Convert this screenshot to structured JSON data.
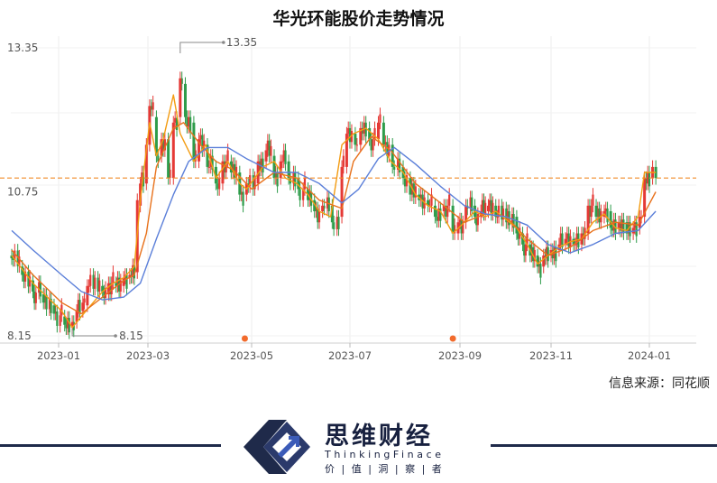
{
  "title": "华光环能股价走势情况",
  "source": "信息来源：同花顺",
  "brand": {
    "name_cn": "思维财经",
    "name_en": "ThinkingFinace",
    "tagline": "价 | 值 | 洞 | 察 | 者",
    "colors": {
      "navy": "#1f2a4a",
      "blue": "#3b5bb8"
    }
  },
  "chart_data": {
    "type": "line",
    "subtype": "candlestick-with-moving-averages",
    "x_tick_labels": [
      "2023-01",
      "2023-03",
      "2023-05",
      "2023-07",
      "2023-09",
      "2023-11",
      "2024-01"
    ],
    "y_tick_labels": [
      "13.35",
      "10.75",
      "8.15"
    ],
    "ylim": [
      8.15,
      13.35
    ],
    "annotations": {
      "high": "13.35",
      "low": "8.15"
    },
    "reference_line": {
      "value": 11.0,
      "color": "#f28c28",
      "style": "dashed"
    },
    "event_markers": [
      "2023-04-27",
      "2023-08-28"
    ],
    "grid": true,
    "colors": {
      "up": "#e53935",
      "down": "#2e9c4a",
      "ma_short": "#f39c12",
      "ma_mid": "#e8721c",
      "ma_long": "#5b7fd9"
    },
    "series": [
      {
        "values": [
          [
            "2022-12-01",
            9.6
          ],
          [
            "2022-12-15",
            9.1
          ],
          [
            "2023-01-03",
            8.6
          ],
          [
            "2023-01-10",
            8.3
          ],
          [
            "2023-01-16",
            8.5
          ],
          [
            "2023-01-30",
            8.95
          ],
          [
            "2023-02-06",
            9.1
          ],
          [
            "2023-02-13",
            9.2
          ],
          [
            "2023-02-20",
            9.4
          ],
          [
            "2023-02-24",
            10.6
          ],
          [
            "2023-03-02",
            12.0
          ],
          [
            "2023-03-06",
            11.4
          ],
          [
            "2023-03-10",
            11.7
          ],
          [
            "2023-03-16",
            12.5
          ],
          [
            "2023-03-20",
            11.8
          ],
          [
            "2023-03-28",
            11.3
          ],
          [
            "2023-04-04",
            11.6
          ],
          [
            "2023-04-10",
            11.0
          ],
          [
            "2023-04-17",
            11.3
          ],
          [
            "2023-04-24",
            10.9
          ],
          [
            "2023-04-28",
            10.8
          ],
          [
            "2023-05-08",
            11.2
          ],
          [
            "2023-05-15",
            11.3
          ],
          [
            "2023-05-22",
            11.0
          ],
          [
            "2023-05-29",
            10.9
          ],
          [
            "2023-06-05",
            10.7
          ],
          [
            "2023-06-12",
            10.4
          ],
          [
            "2023-06-19",
            10.3
          ],
          [
            "2023-06-26",
            11.6
          ],
          [
            "2023-07-03",
            11.8
          ],
          [
            "2023-07-10",
            11.9
          ],
          [
            "2023-07-17",
            11.7
          ],
          [
            "2023-07-24",
            11.3
          ],
          [
            "2023-07-31",
            11.1
          ],
          [
            "2023-08-07",
            10.7
          ],
          [
            "2023-08-14",
            10.5
          ],
          [
            "2023-08-21",
            10.4
          ],
          [
            "2023-08-28",
            10.0
          ],
          [
            "2023-09-04",
            10.2
          ],
          [
            "2023-09-11",
            10.4
          ],
          [
            "2023-09-18",
            10.3
          ],
          [
            "2023-09-25",
            10.4
          ],
          [
            "2023-10-09",
            10.1
          ],
          [
            "2023-10-16",
            9.8
          ],
          [
            "2023-10-23",
            9.45
          ],
          [
            "2023-10-30",
            9.6
          ],
          [
            "2023-11-06",
            9.75
          ],
          [
            "2023-11-13",
            9.85
          ],
          [
            "2023-11-20",
            9.9
          ],
          [
            "2023-11-27",
            10.2
          ],
          [
            "2023-12-04",
            10.35
          ],
          [
            "2023-12-11",
            10.1
          ],
          [
            "2023-12-18",
            10.05
          ],
          [
            "2023-12-25",
            10.3
          ],
          [
            "2023-12-29",
            11.1
          ],
          [
            "2024-01-05",
            11.1
          ]
        ]
      },
      {
        "values": [
          [
            "2022-12-01",
            9.7
          ],
          [
            "2022-12-15",
            9.25
          ],
          [
            "2023-01-03",
            8.75
          ],
          [
            "2023-01-16",
            8.55
          ],
          [
            "2023-01-30",
            8.85
          ],
          [
            "2023-02-13",
            9.15
          ],
          [
            "2023-02-20",
            9.25
          ],
          [
            "2023-02-28",
            10.0
          ],
          [
            "2023-03-06",
            11.2
          ],
          [
            "2023-03-16",
            11.9
          ],
          [
            "2023-03-22",
            12.0
          ],
          [
            "2023-04-01",
            11.6
          ],
          [
            "2023-04-10",
            11.3
          ],
          [
            "2023-04-20",
            11.15
          ],
          [
            "2023-05-01",
            10.8
          ],
          [
            "2023-05-15",
            11.1
          ],
          [
            "2023-05-29",
            11.0
          ],
          [
            "2023-06-12",
            10.6
          ],
          [
            "2023-06-26",
            10.45
          ],
          [
            "2023-07-03",
            11.3
          ],
          [
            "2023-07-13",
            11.75
          ],
          [
            "2023-07-24",
            11.5
          ],
          [
            "2023-08-07",
            10.9
          ],
          [
            "2023-08-21",
            10.55
          ],
          [
            "2023-09-04",
            10.2
          ],
          [
            "2023-09-18",
            10.35
          ],
          [
            "2023-10-02",
            10.3
          ],
          [
            "2023-10-16",
            9.9
          ],
          [
            "2023-10-30",
            9.6
          ],
          [
            "2023-11-13",
            9.75
          ],
          [
            "2023-11-27",
            10.05
          ],
          [
            "2023-12-11",
            10.2
          ],
          [
            "2023-12-25",
            10.15
          ],
          [
            "2024-01-05",
            10.75
          ]
        ]
      },
      {
        "values": [
          [
            "2022-12-01",
            10.05
          ],
          [
            "2022-12-15",
            9.7
          ],
          [
            "2023-01-03",
            9.25
          ],
          [
            "2023-01-16",
            8.95
          ],
          [
            "2023-01-30",
            8.8
          ],
          [
            "2023-02-13",
            8.85
          ],
          [
            "2023-02-24",
            9.1
          ],
          [
            "2023-03-06",
            9.9
          ],
          [
            "2023-03-16",
            10.7
          ],
          [
            "2023-03-25",
            11.3
          ],
          [
            "2023-04-05",
            11.55
          ],
          [
            "2023-04-17",
            11.55
          ],
          [
            "2023-04-28",
            11.35
          ],
          [
            "2023-05-15",
            11.1
          ],
          [
            "2023-05-29",
            11.1
          ],
          [
            "2023-06-12",
            10.9
          ],
          [
            "2023-06-26",
            10.55
          ],
          [
            "2023-07-06",
            10.8
          ],
          [
            "2023-07-17",
            11.35
          ],
          [
            "2023-07-26",
            11.55
          ],
          [
            "2023-08-07",
            11.25
          ],
          [
            "2023-08-21",
            10.85
          ],
          [
            "2023-09-04",
            10.5
          ],
          [
            "2023-09-18",
            10.35
          ],
          [
            "2023-10-02",
            10.3
          ],
          [
            "2023-10-16",
            10.15
          ],
          [
            "2023-10-30",
            9.8
          ],
          [
            "2023-11-13",
            9.65
          ],
          [
            "2023-11-27",
            9.8
          ],
          [
            "2023-12-11",
            10.0
          ],
          [
            "2023-12-25",
            10.05
          ],
          [
            "2024-01-05",
            10.4
          ]
        ]
      }
    ],
    "candles": [
      [
        "2022-12-01",
        9.6,
        9.55
      ],
      [
        "2022-12-08",
        9.4,
        9.25
      ],
      [
        "2022-12-15",
        9.15,
        8.95
      ],
      [
        "2022-12-22",
        8.9,
        8.75
      ],
      [
        "2022-12-29",
        8.7,
        8.55
      ],
      [
        "2023-01-05",
        8.5,
        8.35
      ],
      [
        "2023-01-10",
        8.3,
        8.4
      ],
      [
        "2023-01-13",
        8.4,
        8.6
      ],
      [
        "2023-01-17",
        8.6,
        8.75
      ],
      [
        "2023-01-20",
        8.7,
        9.05
      ],
      [
        "2023-01-30",
        9.05,
        8.95
      ],
      [
        "2023-02-03",
        8.9,
        9.1
      ],
      [
        "2023-02-08",
        9.1,
        9.05
      ],
      [
        "2023-02-13",
        9.05,
        9.2
      ],
      [
        "2023-02-17",
        9.2,
        9.25
      ],
      [
        "2023-02-22",
        9.3,
        10.6
      ],
      [
        "2023-02-24",
        10.5,
        10.9
      ],
      [
        "2023-02-28",
        10.9,
        11.6
      ],
      [
        "2023-03-02",
        11.6,
        12.3
      ],
      [
        "2023-03-06",
        12.1,
        11.4
      ],
      [
        "2023-03-09",
        11.4,
        11.7
      ],
      [
        "2023-03-13",
        11.7,
        11.0
      ],
      [
        "2023-03-16",
        11.0,
        12.0
      ],
      [
        "2023-03-20",
        12.1,
        12.8
      ],
      [
        "2023-03-23",
        12.7,
        12.1
      ],
      [
        "2023-03-28",
        12.0,
        11.3
      ],
      [
        "2023-03-31",
        11.3,
        11.7
      ],
      [
        "2023-04-05",
        11.6,
        11.2
      ],
      [
        "2023-04-10",
        11.2,
        10.9
      ],
      [
        "2023-04-14",
        10.9,
        11.3
      ],
      [
        "2023-04-19",
        11.3,
        11.1
      ],
      [
        "2023-04-24",
        11.1,
        10.7
      ],
      [
        "2023-04-28",
        10.7,
        10.9
      ],
      [
        "2023-05-05",
        10.9,
        11.3
      ],
      [
        "2023-05-10",
        11.3,
        11.5
      ],
      [
        "2023-05-15",
        11.4,
        11.0
      ],
      [
        "2023-05-19",
        11.0,
        11.3
      ],
      [
        "2023-05-24",
        11.3,
        11.0
      ],
      [
        "2023-05-30",
        11.0,
        10.8
      ],
      [
        "2023-06-05",
        10.8,
        10.6
      ],
      [
        "2023-06-09",
        10.6,
        10.4
      ],
      [
        "2023-06-14",
        10.4,
        10.5
      ],
      [
        "2023-06-20",
        10.5,
        10.2
      ],
      [
        "2023-06-26",
        10.3,
        11.2
      ],
      [
        "2023-06-29",
        11.2,
        11.8
      ],
      [
        "2023-07-04",
        11.8,
        11.6
      ],
      [
        "2023-07-07",
        11.6,
        11.9
      ],
      [
        "2023-07-12",
        11.9,
        11.7
      ],
      [
        "2023-07-17",
        11.7,
        12.0
      ],
      [
        "2023-07-20",
        12.0,
        11.6
      ],
      [
        "2023-07-25",
        11.6,
        11.2
      ],
      [
        "2023-07-31",
        11.2,
        11.0
      ],
      [
        "2023-08-04",
        11.0,
        10.7
      ],
      [
        "2023-08-09",
        10.7,
        10.6
      ],
      [
        "2023-08-14",
        10.6,
        10.5
      ],
      [
        "2023-08-18",
        10.5,
        10.3
      ],
      [
        "2023-08-23",
        10.4,
        10.5
      ],
      [
        "2023-08-28",
        10.5,
        10.0
      ],
      [
        "2023-08-31",
        10.0,
        10.2
      ],
      [
        "2023-09-05",
        10.2,
        10.5
      ],
      [
        "2023-09-11",
        10.5,
        10.3
      ],
      [
        "2023-09-15",
        10.3,
        10.4
      ],
      [
        "2023-09-20",
        10.4,
        10.5
      ],
      [
        "2023-09-25",
        10.5,
        10.3
      ],
      [
        "2023-10-09",
        10.3,
        10.0
      ],
      [
        "2023-10-13",
        10.0,
        9.8
      ],
      [
        "2023-10-18",
        9.8,
        9.6
      ],
      [
        "2023-10-23",
        9.6,
        9.4
      ],
      [
        "2023-10-27",
        9.4,
        9.6
      ],
      [
        "2023-11-01",
        9.6,
        9.7
      ],
      [
        "2023-11-06",
        9.7,
        9.8
      ],
      [
        "2023-11-10",
        9.8,
        9.9
      ],
      [
        "2023-11-15",
        9.9,
        9.8
      ],
      [
        "2023-11-20",
        9.8,
        10.0
      ],
      [
        "2023-11-24",
        10.0,
        10.5
      ],
      [
        "2023-11-29",
        10.5,
        10.3
      ],
      [
        "2023-12-04",
        10.3,
        10.4
      ],
      [
        "2023-12-08",
        10.4,
        10.1
      ],
      [
        "2023-12-13",
        10.1,
        10.2
      ],
      [
        "2023-12-18",
        10.2,
        10.0
      ],
      [
        "2023-12-22",
        10.0,
        10.1
      ],
      [
        "2023-12-26",
        10.1,
        10.3
      ],
      [
        "2023-12-29",
        10.3,
        11.0
      ],
      [
        "2024-01-03",
        11.0,
        11.2
      ],
      [
        "2024-01-05",
        11.2,
        11.0
      ]
    ]
  }
}
